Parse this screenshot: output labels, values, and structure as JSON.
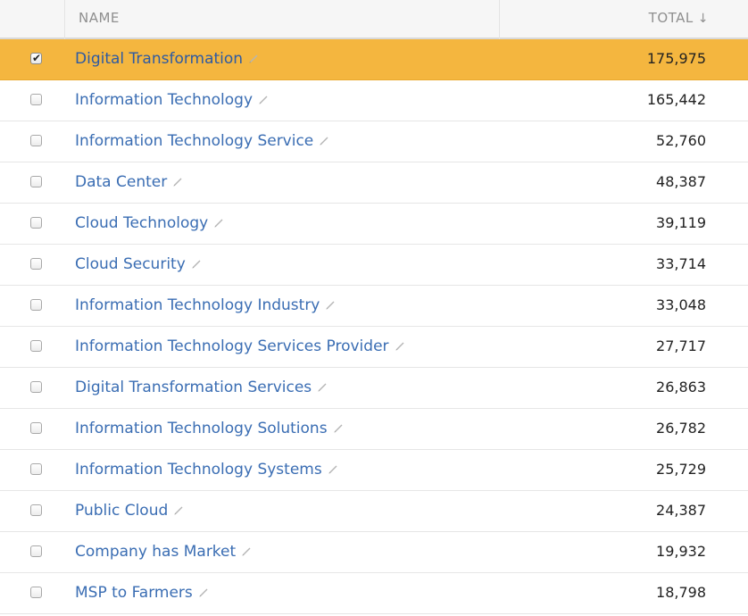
{
  "header": {
    "name_label": "NAME",
    "total_label": "TOTAL",
    "sort_icon": "↓"
  },
  "rows": [
    {
      "name": "Digital Transformation",
      "total": "175,975",
      "checked": true
    },
    {
      "name": "Information Technology",
      "total": "165,442",
      "checked": false
    },
    {
      "name": "Information Technology Service",
      "total": "52,760",
      "checked": false
    },
    {
      "name": "Data Center",
      "total": "48,387",
      "checked": false
    },
    {
      "name": "Cloud Technology",
      "total": "39,119",
      "checked": false
    },
    {
      "name": "Cloud Security",
      "total": "33,714",
      "checked": false
    },
    {
      "name": "Information Technology Industry",
      "total": "33,048",
      "checked": false
    },
    {
      "name": "Information Technology Services Provider",
      "total": "27,717",
      "checked": false
    },
    {
      "name": "Digital Transformation Services",
      "total": "26,863",
      "checked": false
    },
    {
      "name": "Information Technology Solutions",
      "total": "26,782",
      "checked": false
    },
    {
      "name": "Information Technology Systems",
      "total": "25,729",
      "checked": false
    },
    {
      "name": "Public Cloud",
      "total": "24,387",
      "checked": false
    },
    {
      "name": "Company has Market",
      "total": "19,932",
      "checked": false
    },
    {
      "name": "MSP to Farmers",
      "total": "18,798",
      "checked": false
    }
  ],
  "colors": {
    "selected_row": "#f4b63f",
    "link": "#3a6db3",
    "header_bg": "#f6f6f6"
  }
}
